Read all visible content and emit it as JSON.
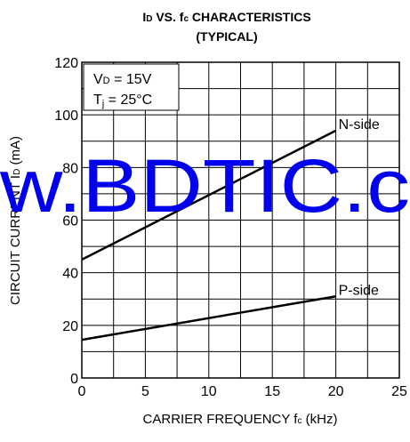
{
  "chart_data": {
    "type": "line",
    "title_line1_main": "I",
    "title_line1_sub": "D",
    "title_line1_mid": " VS. f",
    "title_line1_sub2": "c",
    "title_line1_end": " CHARACTERISTICS",
    "title_line2": "(TYPICAL)",
    "xlabel_main": "CARRIER FREQUENCY  f",
    "xlabel_sub": "c",
    "xlabel_end": " (kHz)",
    "ylabel_main": "CIRCUIT CURRENT  I",
    "ylabel_sub": "D",
    "ylabel_end": " (mA)",
    "xlim": [
      0,
      25
    ],
    "ylim": [
      0,
      120
    ],
    "x_ticks": [
      0,
      5,
      10,
      15,
      20,
      25
    ],
    "y_ticks": [
      0,
      20,
      40,
      60,
      80,
      100,
      120
    ],
    "x_minor_step": 2.5,
    "y_minor_step": 10,
    "grid": true,
    "conditions": {
      "vd_main": "V",
      "vd_sub": "D",
      "vd_value": " = 15V",
      "tj_main": "T",
      "tj_sub": "j",
      "tj_value": " = 25°C"
    },
    "series": [
      {
        "name": "N-side",
        "x": [
          0,
          20
        ],
        "y": [
          45,
          94
        ]
      },
      {
        "name": "P-side",
        "x": [
          0,
          20
        ],
        "y": [
          14.5,
          31
        ]
      }
    ],
    "watermark": "w.BDTIC.c",
    "watermark_color": "#0000ee"
  }
}
